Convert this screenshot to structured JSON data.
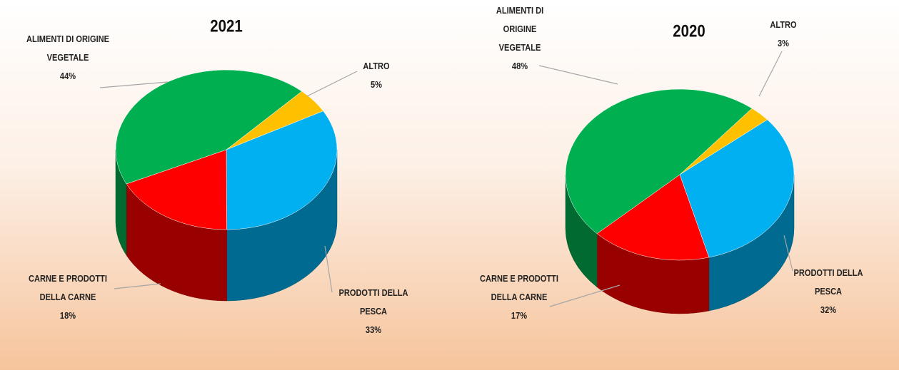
{
  "chart_data": [
    {
      "type": "pie",
      "title": "2021",
      "categories": [
        "PRODOTTI DELLA PESCA",
        "CARNE E PRODOTTI DELLA CARNE",
        "ALIMENTI DI ORIGINE VEGETALE",
        "ALTRO"
      ],
      "values": [
        33,
        18,
        44,
        5
      ],
      "value_labels": [
        "33%",
        "18%",
        "44%",
        "5%"
      ],
      "colors": [
        "#00b0f0",
        "#ff0000",
        "#00b050",
        "#ffc000"
      ]
    },
    {
      "type": "pie",
      "title": "2020",
      "categories": [
        "PRODOTTI DELLA PESCA",
        "CARNE E PRODOTTI DELLA CARNE",
        "ALIMENTI DI ORIGINE VEGETALE",
        "ALTRO"
      ],
      "values": [
        32,
        17,
        48,
        3
      ],
      "value_labels": [
        "32%",
        "17%",
        "48%",
        "3%"
      ],
      "colors": [
        "#00b0f0",
        "#ff0000",
        "#00b050",
        "#ffc000"
      ]
    }
  ]
}
